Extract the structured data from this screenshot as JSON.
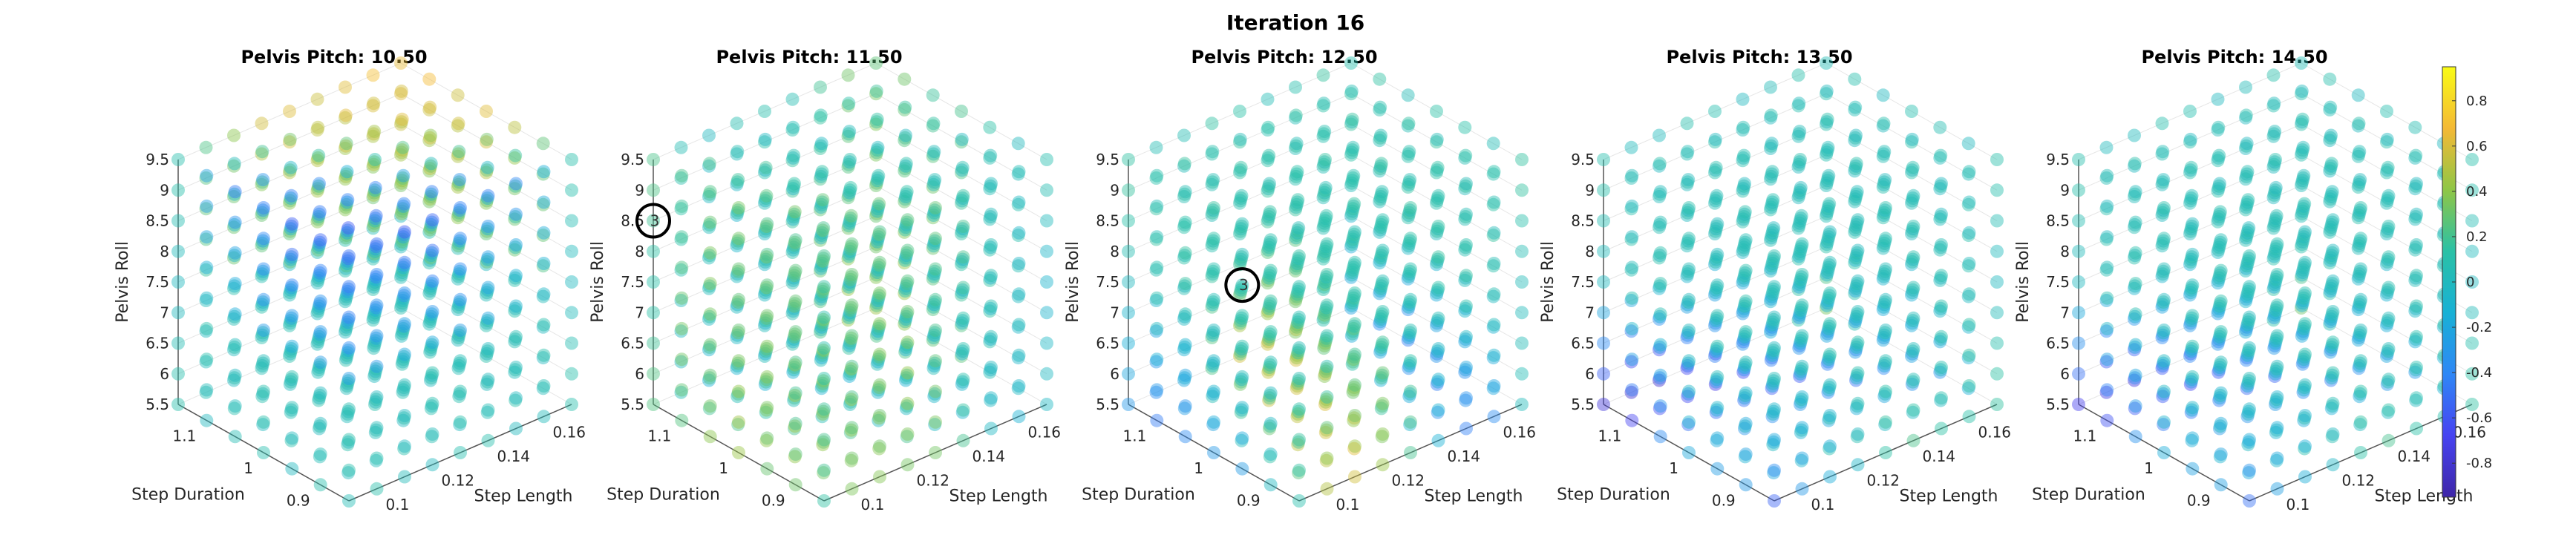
{
  "figure": {
    "title": "Iteration 16"
  },
  "colorbar": {
    "colors": [
      "#3e26a8",
      "#4743f1",
      "#2f87f6",
      "#18b1d5",
      "#2ac1a6",
      "#8fc646",
      "#f4b935",
      "#f9fb15"
    ],
    "range": [
      -0.95,
      0.95
    ],
    "tick_labels": [
      "0.8",
      "0.6",
      "0.4",
      "0.2",
      "0",
      "-0.2",
      "-0.4",
      "-0.6",
      "-0.8"
    ],
    "tick_values": [
      0.8,
      0.6,
      0.4,
      0.2,
      0,
      -0.2,
      -0.4,
      -0.6,
      -0.8
    ]
  },
  "chart_data": [
    {
      "type": "scatter3d",
      "title": "Pelvis Pitch: 10.50",
      "xlabel": "Step Length",
      "ylabel": "Step Duration",
      "zlabel": "Pelvis Roll",
      "x_ticks": [
        "0.1",
        "0.12",
        "0.14",
        "0.16"
      ],
      "y_ticks": [
        "0.9",
        "1",
        "1.1"
      ],
      "z_ticks": [
        "5.5",
        "6",
        "6.5",
        "7",
        "7.5",
        "8",
        "8.5",
        "9",
        "9.5"
      ],
      "grid": {
        "x": [
          0.09,
          0.17,
          9
        ],
        "y": [
          0.85,
          1.15,
          7
        ],
        "z": [
          5.5,
          9.5,
          9
        ]
      },
      "value_field": {
        "mode": "upper_diag",
        "center": 0.05,
        "amplitude": 0.6
      },
      "annotation": null
    },
    {
      "type": "scatter3d",
      "title": "Pelvis Pitch: 11.50",
      "xlabel": "Step Length",
      "ylabel": "Step Duration",
      "zlabel": "Pelvis Roll",
      "x_ticks": [
        "0.1",
        "0.12",
        "0.14",
        "0.16"
      ],
      "y_ticks": [
        "0.9",
        "1",
        "1.1"
      ],
      "z_ticks": [
        "5.5",
        "6",
        "6.5",
        "7",
        "7.5",
        "8",
        "8.5",
        "9",
        "9.5"
      ],
      "grid": {
        "x": [
          0.09,
          0.17,
          9
        ],
        "y": [
          0.85,
          1.15,
          7
        ],
        "z": [
          5.5,
          9.5,
          9
        ]
      },
      "value_field": {
        "mode": "mixed",
        "center": 0.15,
        "amplitude": 0.35
      },
      "annotation": {
        "label": "3",
        "x": 0.09,
        "y": 1.15,
        "z": 8.5
      }
    },
    {
      "type": "scatter3d",
      "title": "Pelvis Pitch: 12.50",
      "xlabel": "Step Length",
      "ylabel": "Step Duration",
      "zlabel": "Pelvis Roll",
      "x_ticks": [
        "0.1",
        "0.12",
        "0.14",
        "0.16"
      ],
      "y_ticks": [
        "0.9",
        "1",
        "1.1"
      ],
      "z_ticks": [
        "5.5",
        "6",
        "6.5",
        "7",
        "7.5",
        "8",
        "8.5",
        "9",
        "9.5"
      ],
      "grid": {
        "x": [
          0.09,
          0.17,
          9
        ],
        "y": [
          0.85,
          1.15,
          7
        ],
        "z": [
          5.5,
          9.5,
          9
        ]
      },
      "value_field": {
        "mode": "lower_warm",
        "center": 0.1,
        "amplitude": 0.5
      },
      "annotation": {
        "label": "3",
        "x": 0.09,
        "y": 0.95,
        "z": 8.5
      }
    },
    {
      "type": "scatter3d",
      "title": "Pelvis Pitch: 13.50",
      "xlabel": "Step Length",
      "ylabel": "Step Duration",
      "zlabel": "Pelvis Roll",
      "x_ticks": [
        "0.1",
        "0.12",
        "0.14",
        "0.16"
      ],
      "y_ticks": [
        "0.9",
        "1",
        "1.1"
      ],
      "z_ticks": [
        "5.5",
        "6",
        "6.5",
        "7",
        "7.5",
        "8",
        "8.5",
        "9",
        "9.5"
      ],
      "grid": {
        "x": [
          0.09,
          0.17,
          9
        ],
        "y": [
          0.85,
          1.15,
          7
        ],
        "z": [
          5.5,
          9.5,
          9
        ]
      },
      "value_field": {
        "mode": "lower_cold",
        "center": 0.05,
        "amplitude": 0.6
      },
      "annotation": null
    },
    {
      "type": "scatter3d",
      "title": "Pelvis Pitch: 14.50",
      "xlabel": "Step Length",
      "ylabel": "Step Duration",
      "zlabel": "Pelvis Roll",
      "x_ticks": [
        "0.1",
        "0.12",
        "0.14",
        "0.16"
      ],
      "y_ticks": [
        "0.9",
        "1",
        "1.1"
      ],
      "z_ticks": [
        "5.5",
        "6",
        "6.5",
        "7",
        "7.5",
        "8",
        "8.5",
        "9",
        "9.5"
      ],
      "grid": {
        "x": [
          0.09,
          0.17,
          9
        ],
        "y": [
          0.85,
          1.15,
          7
        ],
        "z": [
          5.5,
          9.5,
          9
        ]
      },
      "value_field": {
        "mode": "lower_cold",
        "center": 0.05,
        "amplitude": 0.55
      },
      "annotation": null
    }
  ]
}
